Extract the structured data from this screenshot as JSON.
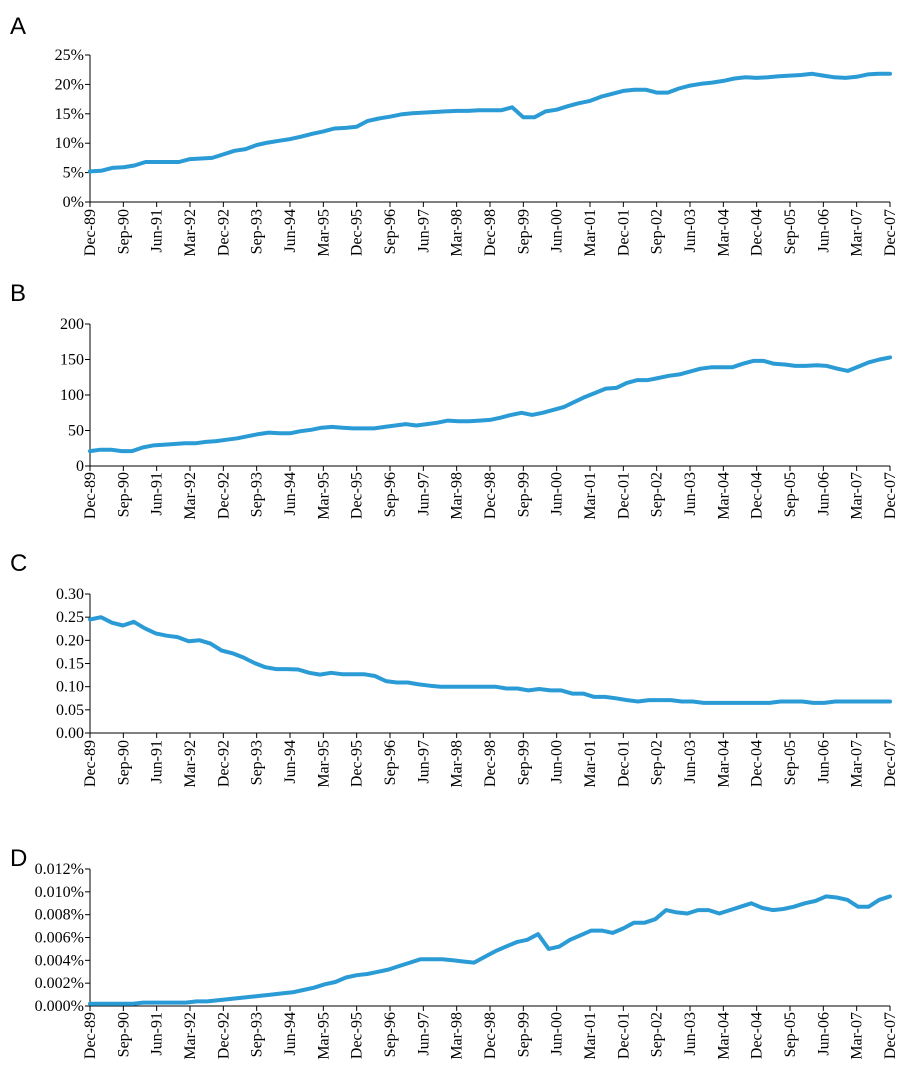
{
  "chart_data": [
    {
      "type": "line",
      "panel_label": "A",
      "x_ticks": [
        "Dec-89",
        "Sep-90",
        "Jun-91",
        "Mar-92",
        "Dec-92",
        "Sep-93",
        "Jun-94",
        "Mar-95",
        "Dec-95",
        "Sep-96",
        "Jun-97",
        "Mar-98",
        "Dec-98",
        "Sep-99",
        "Jun-00",
        "Mar-01",
        "Dec-01",
        "Sep-02",
        "Jun-03",
        "Mar-04",
        "Dec-04",
        "Sep-05",
        "Jun-06",
        "Mar-07",
        "Dec-07"
      ],
      "y_ticks": [
        "0%",
        "5%",
        "10%",
        "15%",
        "20%",
        "25%"
      ],
      "ylim": [
        0,
        25
      ],
      "values": [
        5.2,
        5.3,
        5.8,
        5.9,
        6.2,
        6.8,
        6.8,
        6.8,
        6.8,
        7.3,
        7.4,
        7.5,
        8.1,
        8.7,
        9.0,
        9.7,
        10.1,
        10.4,
        10.7,
        11.1,
        11.6,
        12.0,
        12.5,
        12.6,
        12.8,
        13.8,
        14.2,
        14.5,
        14.9,
        15.1,
        15.2,
        15.3,
        15.4,
        15.5,
        15.5,
        15.6,
        15.6,
        15.6,
        16.1,
        14.4,
        14.4,
        15.4,
        15.7,
        16.3,
        16.8,
        17.2,
        17.9,
        18.4,
        18.9,
        19.1,
        19.1,
        18.6,
        18.6,
        19.3,
        19.8,
        20.1,
        20.3,
        20.6,
        21.0,
        21.2,
        21.1,
        21.2,
        21.4,
        21.5,
        21.6,
        21.8,
        21.5,
        21.2,
        21.1,
        21.3,
        21.7,
        21.8,
        21.8
      ]
    },
    {
      "type": "line",
      "panel_label": "B",
      "x_ticks": [
        "Dec-89",
        "Sep-90",
        "Jun-91",
        "Mar-92",
        "Dec-92",
        "Sep-93",
        "Jun-94",
        "Mar-95",
        "Dec-95",
        "Sep-96",
        "Jun-97",
        "Mar-98",
        "Dec-98",
        "Sep-99",
        "Jun-00",
        "Mar-01",
        "Dec-01",
        "Sep-02",
        "Jun-03",
        "Mar-04",
        "Dec-04",
        "Sep-05",
        "Jun-06",
        "Mar-07",
        "Dec-07"
      ],
      "y_ticks": [
        "0",
        "50",
        "100",
        "150",
        "200"
      ],
      "ylim": [
        0,
        200
      ],
      "values": [
        21,
        23,
        23,
        21,
        21,
        26,
        29,
        30,
        31,
        32,
        32,
        34,
        35,
        37,
        39,
        42,
        45,
        47,
        46,
        46,
        49,
        51,
        54,
        55,
        54,
        53,
        53,
        53,
        55,
        57,
        59,
        57,
        59,
        61,
        64,
        63,
        63,
        64,
        65,
        68,
        72,
        75,
        72,
        75,
        79,
        83,
        90,
        97,
        103,
        109,
        110,
        117,
        121,
        121,
        124,
        127,
        129,
        133,
        137,
        139,
        139,
        139,
        144,
        148,
        148,
        144,
        143,
        141,
        141,
        142,
        141,
        137,
        134,
        140,
        146,
        150,
        153
      ]
    },
    {
      "type": "line",
      "panel_label": "C",
      "x_ticks": [
        "Dec-89",
        "Sep-90",
        "Jun-91",
        "Mar-92",
        "Dec-92",
        "Sep-93",
        "Jun-94",
        "Mar-95",
        "Dec-95",
        "Sep-96",
        "Jun-97",
        "Mar-98",
        "Dec-98",
        "Sep-99",
        "Jun-00",
        "Mar-01",
        "Dec-01",
        "Sep-02",
        "Jun-03",
        "Mar-04",
        "Dec-04",
        "Sep-05",
        "Jun-06",
        "Mar-07",
        "Dec-07"
      ],
      "y_ticks": [
        "0.00",
        "0.05",
        "0.10",
        "0.15",
        "0.20",
        "0.25",
        "0.30"
      ],
      "ylim": [
        0,
        0.3
      ],
      "values": [
        0.245,
        0.25,
        0.238,
        0.232,
        0.24,
        0.226,
        0.215,
        0.21,
        0.207,
        0.198,
        0.2,
        0.193,
        0.178,
        0.172,
        0.163,
        0.151,
        0.142,
        0.138,
        0.138,
        0.137,
        0.13,
        0.126,
        0.13,
        0.127,
        0.127,
        0.127,
        0.123,
        0.112,
        0.109,
        0.109,
        0.105,
        0.102,
        0.1,
        0.1,
        0.1,
        0.1,
        0.1,
        0.1,
        0.096,
        0.096,
        0.092,
        0.095,
        0.092,
        0.092,
        0.085,
        0.085,
        0.078,
        0.078,
        0.075,
        0.071,
        0.068,
        0.071,
        0.071,
        0.071,
        0.068,
        0.068,
        0.065,
        0.065,
        0.065,
        0.065,
        0.065,
        0.065,
        0.065,
        0.068,
        0.068,
        0.068,
        0.065,
        0.065,
        0.068,
        0.068,
        0.068,
        0.068,
        0.068,
        0.068
      ]
    },
    {
      "type": "line",
      "panel_label": "D",
      "x_ticks": [
        "Dec-89",
        "Sep-90",
        "Jun-91",
        "Mar-92",
        "Dec-92",
        "Sep-93",
        "Jun-94",
        "Mar-95",
        "Dec-95",
        "Sep-96",
        "Jun-97",
        "Mar-98",
        "Dec-98",
        "Sep-99",
        "Jun-00",
        "Mar-01",
        "Dec-01",
        "Sep-02",
        "Jun-03",
        "Mar-04",
        "Dec-04",
        "Sep-05",
        "Jun-06",
        "Mar-07",
        "Dec-07"
      ],
      "y_ticks": [
        "0.000%",
        "0.002%",
        "0.004%",
        "0.006%",
        "0.008%",
        "0.010%",
        "0.012%"
      ],
      "ylim": [
        0,
        0.012
      ],
      "values": [
        0.0002,
        0.0002,
        0.0002,
        0.0002,
        0.0002,
        0.0003,
        0.0003,
        0.0003,
        0.0003,
        0.0003,
        0.0004,
        0.0004,
        0.0005,
        0.0006,
        0.0007,
        0.0008,
        0.0009,
        0.001,
        0.0011,
        0.0012,
        0.0014,
        0.0016,
        0.0019,
        0.0021,
        0.0025,
        0.0027,
        0.0028,
        0.003,
        0.0032,
        0.0035,
        0.0038,
        0.0041,
        0.0041,
        0.0041,
        0.004,
        0.0039,
        0.0038,
        0.0043,
        0.0048,
        0.0052,
        0.0056,
        0.0058,
        0.0063,
        0.005,
        0.0052,
        0.0058,
        0.0062,
        0.0066,
        0.0066,
        0.0064,
        0.0068,
        0.0073,
        0.0073,
        0.0076,
        0.0084,
        0.0082,
        0.0081,
        0.0084,
        0.0084,
        0.0081,
        0.0084,
        0.0087,
        0.009,
        0.0086,
        0.0084,
        0.0085,
        0.0087,
        0.009,
        0.0092,
        0.0096,
        0.0095,
        0.0093,
        0.0087,
        0.0087,
        0.0093,
        0.0096
      ]
    }
  ]
}
